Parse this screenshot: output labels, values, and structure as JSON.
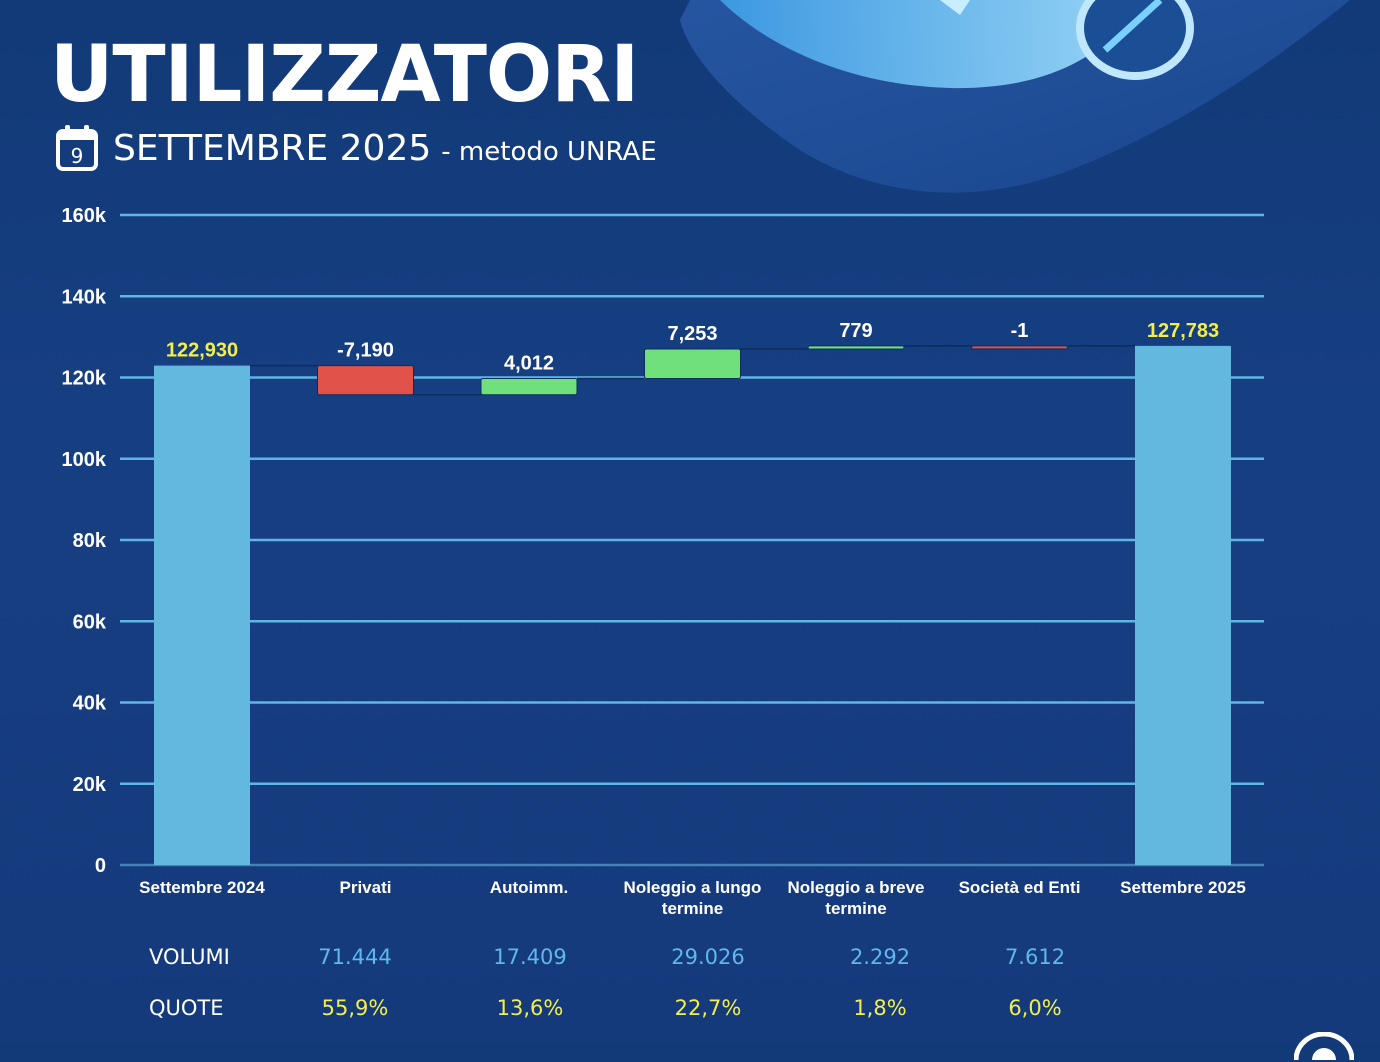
{
  "header": {
    "title": "UTILIZZATORI",
    "calendar_day": "9",
    "subtitle": "SETTEMBRE 2025",
    "subtitle_extra": "- metodo UNRAE"
  },
  "colors": {
    "total": "#63b8e0",
    "increase": "#6fe07a",
    "decrease": "#e0524a",
    "grid": "#5fb6e6",
    "total_label": "#f3ee4b",
    "delta_label": "#ffffff"
  },
  "chart_data": {
    "type": "bar",
    "subtype": "waterfall",
    "categories": [
      "Settembre 2024",
      "Privati",
      "Autoimm.",
      "Noleggio a lungo termine",
      "Noleggio a breve termine",
      "Società ed Enti",
      "Settembre 2025"
    ],
    "category_lines": [
      [
        "Settembre 2024"
      ],
      [
        "Privati"
      ],
      [
        "Autoimm."
      ],
      [
        "Noleggio a lungo",
        "termine"
      ],
      [
        "Noleggio a breve",
        "termine"
      ],
      [
        "Società ed Enti"
      ],
      [
        "Settembre 2025"
      ]
    ],
    "values": [
      122930,
      -7190,
      4012,
      7253,
      779,
      -1,
      127783
    ],
    "measure": [
      "total",
      "relative",
      "relative",
      "relative",
      "relative",
      "relative",
      "total"
    ],
    "data_labels": [
      "122,930",
      "-7,190",
      "4,012",
      "7,253",
      "779",
      "-1",
      "127,783"
    ],
    "ylim": [
      0,
      160000
    ],
    "yticks": [
      0,
      20000,
      40000,
      60000,
      80000,
      100000,
      120000,
      140000,
      160000
    ],
    "ytick_labels": [
      "0",
      "20k",
      "40k",
      "60k",
      "80k",
      "100k",
      "120k",
      "140k",
      "160k"
    ],
    "grid": true,
    "legend": "none"
  },
  "table": {
    "rows": [
      {
        "label": "VOLUMI",
        "kind": "vol",
        "values": [
          "71.444",
          "17.409",
          "29.026",
          "2.292",
          "7.612"
        ]
      },
      {
        "label": "QUOTE",
        "kind": "quota",
        "values": [
          "55,9%",
          "13,6%",
          "22,7%",
          "1,8%",
          "6,0%"
        ]
      }
    ]
  }
}
